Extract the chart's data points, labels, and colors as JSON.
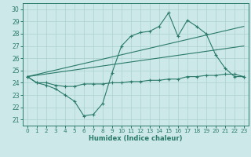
{
  "title": "",
  "xlabel": "Humidex (Indice chaleur)",
  "bg_color": "#cce8e8",
  "grid_color": "#aad0d0",
  "line_color": "#2a7a6a",
  "xlim": [
    -0.5,
    23.5
  ],
  "ylim": [
    20.5,
    30.5
  ],
  "xticks": [
    0,
    1,
    2,
    3,
    4,
    5,
    6,
    7,
    8,
    9,
    10,
    11,
    12,
    13,
    14,
    15,
    16,
    17,
    18,
    19,
    20,
    21,
    22,
    23
  ],
  "yticks": [
    21,
    22,
    23,
    24,
    25,
    26,
    27,
    28,
    29,
    30
  ],
  "series1": [
    24.5,
    24.0,
    23.8,
    23.5,
    23.0,
    22.5,
    21.3,
    21.4,
    22.3,
    24.8,
    27.0,
    27.8,
    28.1,
    28.2,
    28.6,
    29.7,
    27.8,
    29.1,
    28.6,
    28.0,
    26.3,
    25.2,
    24.5,
    24.5
  ],
  "series2": [
    24.5,
    24.0,
    24.0,
    23.8,
    23.7,
    23.7,
    23.9,
    23.9,
    23.9,
    24.0,
    24.0,
    24.1,
    24.1,
    24.2,
    24.2,
    24.3,
    24.3,
    24.5,
    24.5,
    24.6,
    24.6,
    24.7,
    24.7,
    24.5
  ],
  "series3_x": [
    0,
    23
  ],
  "series3_y": [
    24.5,
    28.6
  ],
  "series4_x": [
    0,
    23
  ],
  "series4_y": [
    24.5,
    27.0
  ],
  "label_fontsize": 5.5,
  "xlabel_fontsize": 6.0,
  "tick_labelsize": 5.2
}
